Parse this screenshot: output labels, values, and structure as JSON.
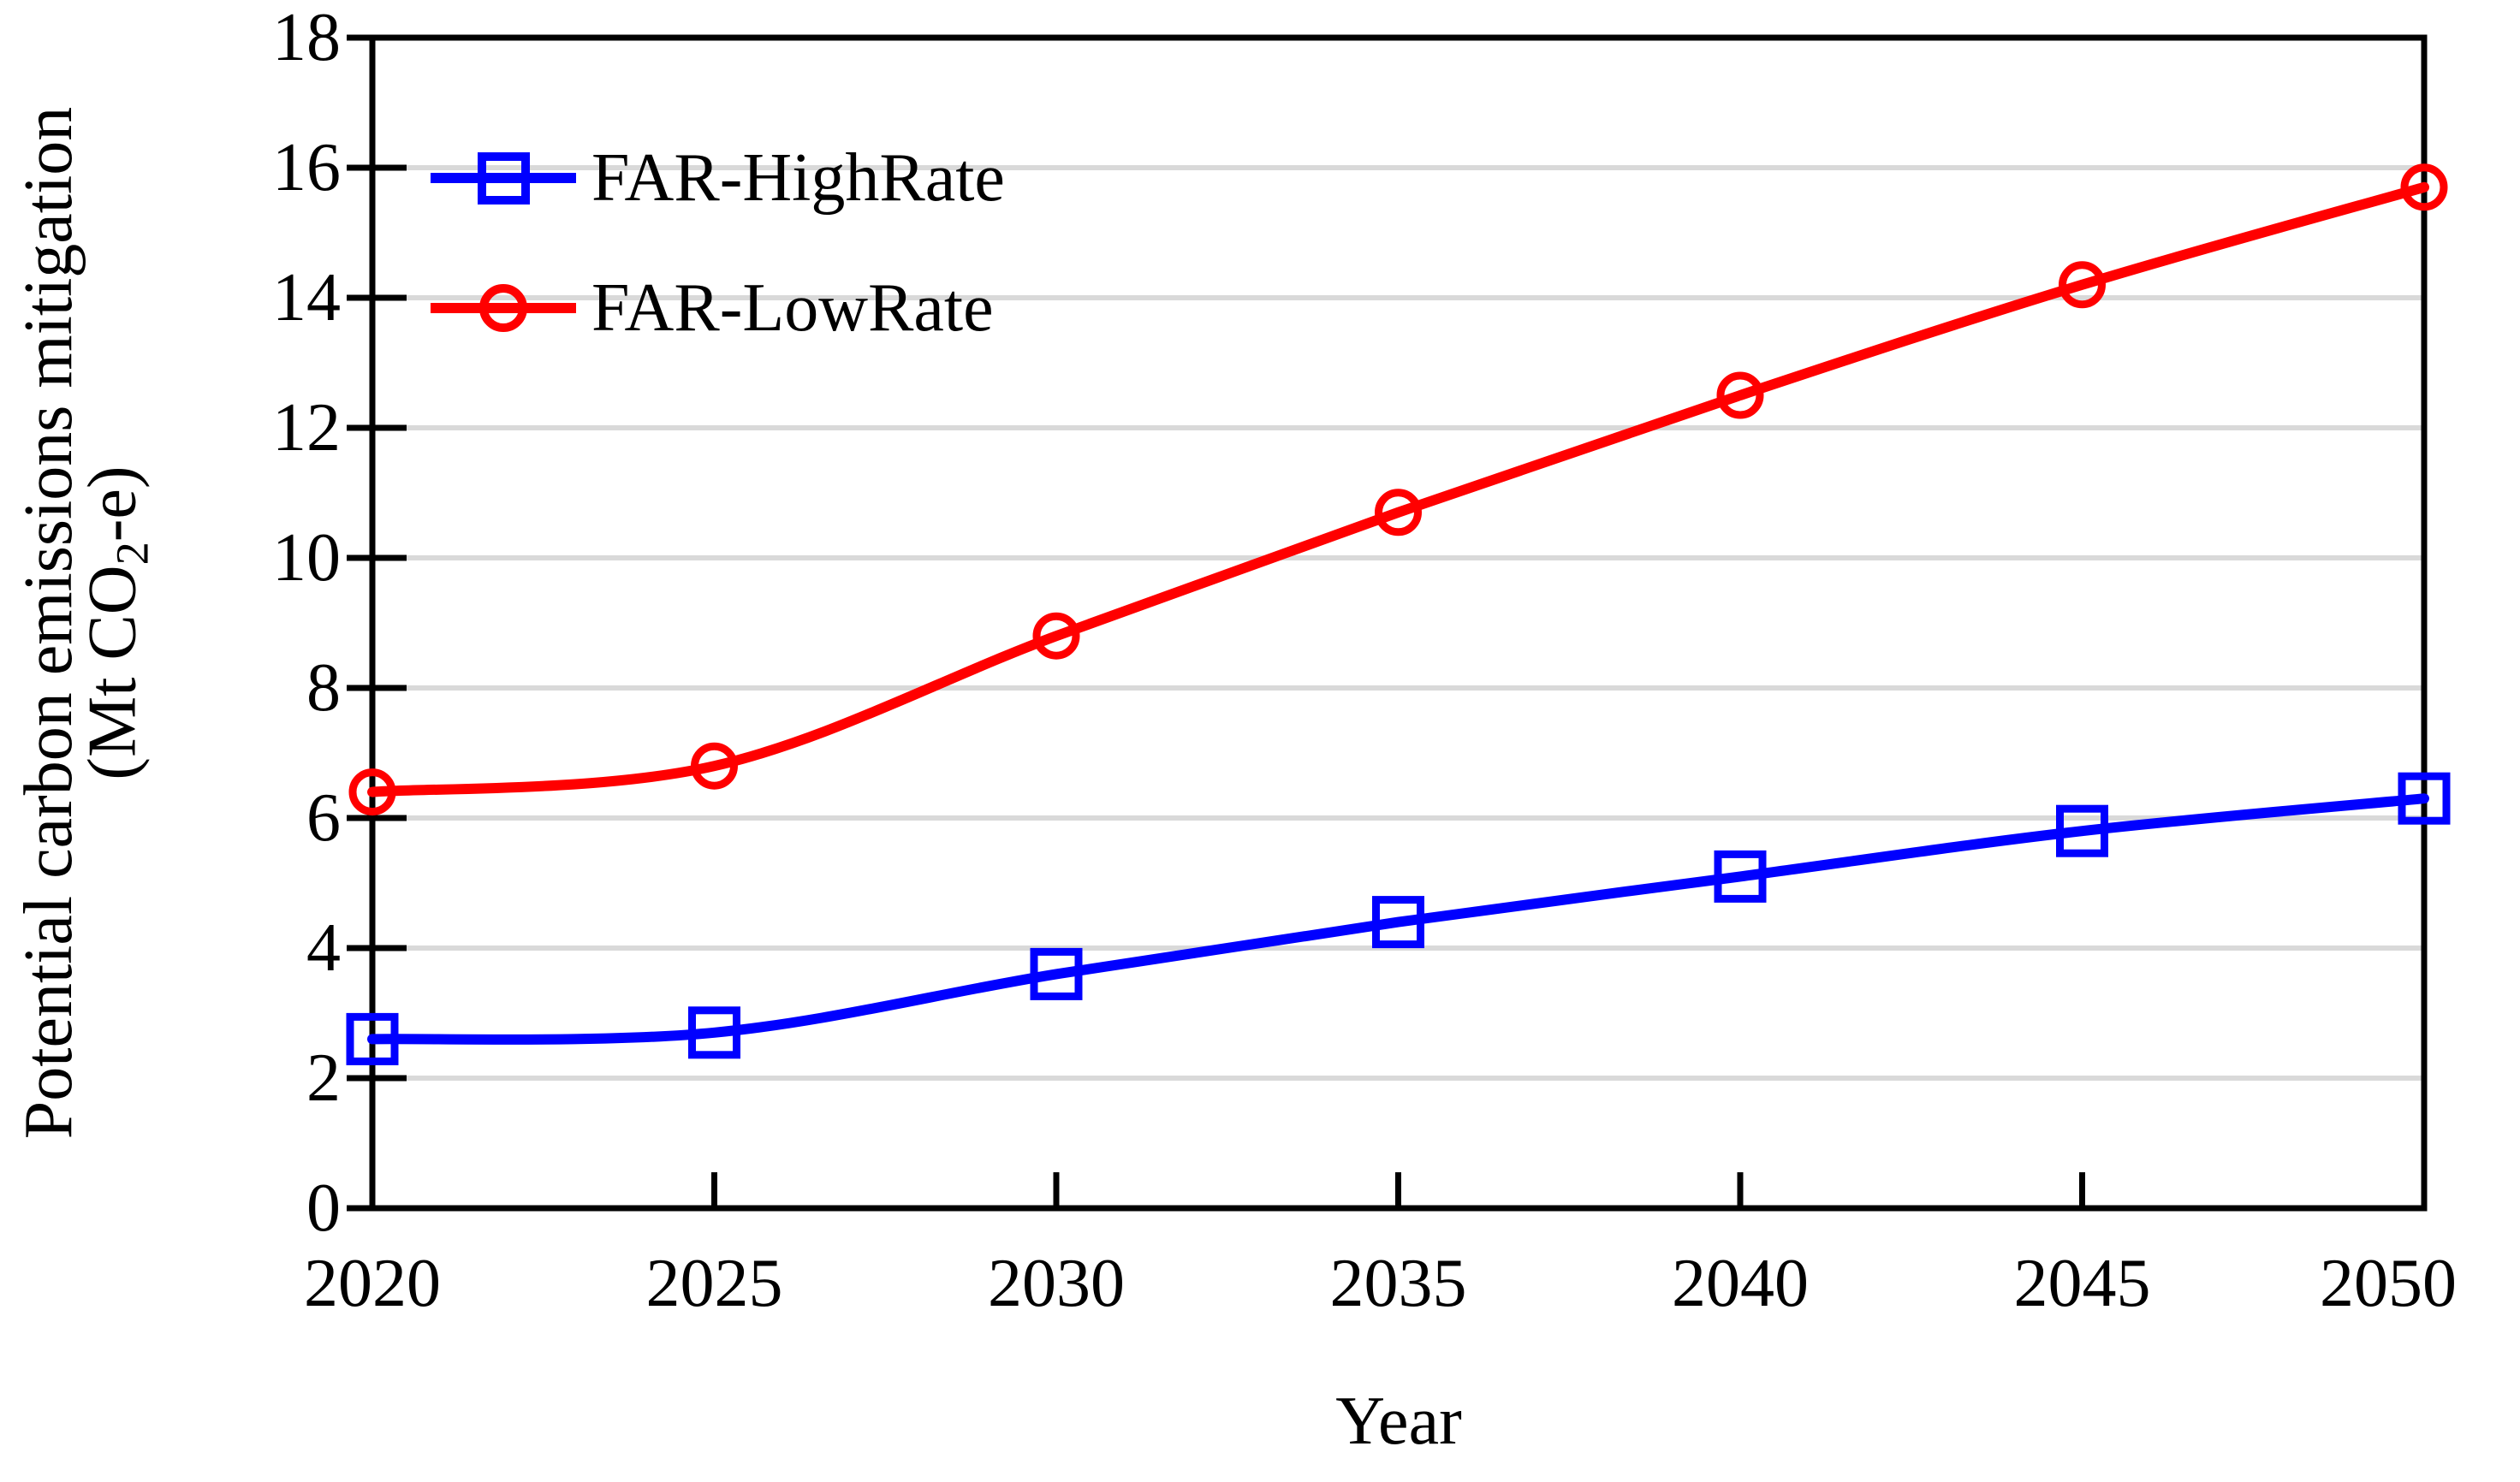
{
  "chart_data": {
    "type": "line",
    "x": [
      2020,
      2025,
      2030,
      2035,
      2040,
      2045,
      2050
    ],
    "series": [
      {
        "name": "FAR-HighRate",
        "color": "#0000ff",
        "marker": "square",
        "values": [
          2.6,
          2.7,
          3.6,
          4.4,
          5.1,
          5.8,
          6.3
        ]
      },
      {
        "name": "FAR-LowRate",
        "color": "#ff0000",
        "marker": "circle",
        "values": [
          6.4,
          6.8,
          8.8,
          10.7,
          12.5,
          14.2,
          15.7
        ]
      }
    ],
    "title": "",
    "xlabel": "Year",
    "ylabel_line1": "Potential carbon emissions mitigation",
    "ylabel_line2_pre": "(Mt CO",
    "ylabel_line2_sub": "2",
    "ylabel_line2_post": "-e)",
    "xlim": [
      2020,
      2050
    ],
    "ylim": [
      0,
      18
    ],
    "x_ticks": [
      2020,
      2025,
      2030,
      2035,
      2040,
      2045,
      2050
    ],
    "y_ticks": [
      0,
      2,
      4,
      6,
      8,
      10,
      12,
      14,
      16,
      18
    ],
    "grid": "horizontal, every 2 units",
    "legend_position": "top-left inside plot",
    "line_style": "smoothed",
    "colors": {
      "series_highrate": "#0000ff",
      "series_lowrate": "#ff0000",
      "gridline": "#d9d9d9",
      "axis": "#000000",
      "background": "#ffffff"
    }
  },
  "legend": {
    "entries": [
      {
        "label": "FAR-HighRate"
      },
      {
        "label": "FAR-LowRate"
      }
    ]
  }
}
